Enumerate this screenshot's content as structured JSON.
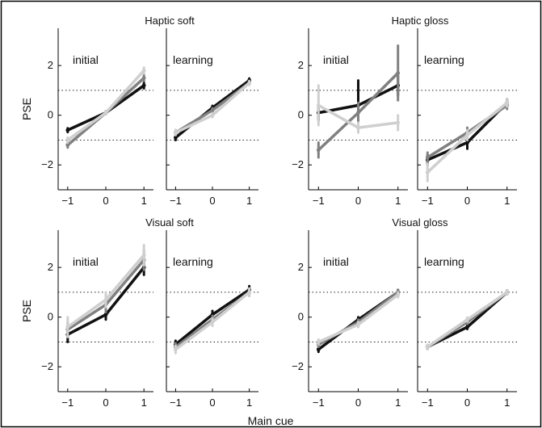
{
  "figure": {
    "border_color": "#000000",
    "series_colors": [
      "#111111",
      "#808080",
      "#cfcfcf"
    ],
    "xlabel": "Main cue"
  },
  "chart_data": [
    {
      "type": "line",
      "group_title": "Haptic soft",
      "ylabel": "PSE",
      "xlim": [
        -1.25,
        1.25
      ],
      "ylim": [
        -3,
        3.5
      ],
      "xticks": [
        "−1",
        "0",
        "1"
      ],
      "yticks": [
        "−2",
        "0",
        "2"
      ],
      "reference_lines": [
        -1,
        1
      ],
      "grid": false,
      "panels": [
        {
          "label": "initial",
          "x": [
            -1,
            0,
            1
          ],
          "series": [
            {
              "values": [
                -0.6,
                0.1,
                1.2
              ],
              "errors": [
                0.08,
                0.06,
                0.12
              ]
            },
            {
              "values": [
                -1.2,
                0.1,
                1.5
              ],
              "errors": [
                0.1,
                0.06,
                0.12
              ]
            },
            {
              "values": [
                -1.0,
                0.1,
                1.8
              ],
              "errors": [
                0.1,
                0.06,
                0.12
              ]
            }
          ]
        },
        {
          "label": "learning",
          "x": [
            -1,
            0,
            1
          ],
          "series": [
            {
              "values": [
                -0.9,
                0.3,
                1.4
              ],
              "errors": [
                0.1,
                0.08,
                0.08
              ]
            },
            {
              "values": [
                -0.7,
                0.2,
                1.3
              ],
              "errors": [
                0.1,
                0.08,
                0.08
              ]
            },
            {
              "values": [
                -0.7,
                0.0,
                1.3
              ],
              "errors": [
                0.1,
                0.08,
                0.08
              ]
            }
          ]
        }
      ]
    },
    {
      "type": "line",
      "group_title": "Haptic gloss",
      "ylabel": "",
      "xlim": [
        -1.25,
        1.25
      ],
      "ylim": [
        -3,
        3.5
      ],
      "xticks": [
        "−1",
        "0",
        "1"
      ],
      "yticks": [
        "−2",
        "0",
        "2"
      ],
      "reference_lines": [
        -1,
        1
      ],
      "grid": false,
      "panels": [
        {
          "label": "initial",
          "x": [
            -1,
            0,
            1
          ],
          "series": [
            {
              "values": [
                0.1,
                0.4,
                1.2
              ],
              "errors": [
                0.3,
                1.0,
                0.4
              ]
            },
            {
              "values": [
                -1.4,
                0.1,
                1.7
              ],
              "errors": [
                0.3,
                0.4,
                1.1
              ]
            },
            {
              "values": [
                0.4,
                -0.5,
                -0.3
              ],
              "errors": [
                0.8,
                0.2,
                0.3
              ]
            }
          ]
        },
        {
          "label": "learning",
          "x": [
            -1,
            0,
            1
          ],
          "series": [
            {
              "values": [
                -1.8,
                -1.1,
                0.5
              ],
              "errors": [
                0.2,
                0.25,
                0.15
              ]
            },
            {
              "values": [
                -1.7,
                -0.7,
                0.4
              ],
              "errors": [
                0.2,
                0.2,
                0.15
              ]
            },
            {
              "values": [
                -2.3,
                -0.8,
                0.5
              ],
              "errors": [
                0.35,
                0.2,
                0.15
              ]
            }
          ]
        }
      ]
    },
    {
      "type": "line",
      "group_title": "Visual soft",
      "ylabel": "PSE",
      "xlim": [
        -1.25,
        1.25
      ],
      "ylim": [
        -3,
        3.5
      ],
      "xticks": [
        "−1",
        "0",
        "1"
      ],
      "yticks": [
        "−2",
        "0",
        "2"
      ],
      "reference_lines": [
        -1,
        1
      ],
      "grid": false,
      "panels": [
        {
          "label": "initial",
          "x": [
            -1,
            0,
            1
          ],
          "series": [
            {
              "values": [
                -0.7,
                0.1,
                2.0
              ],
              "errors": [
                0.3,
                0.2,
                0.3
              ]
            },
            {
              "values": [
                -0.5,
                0.5,
                2.3
              ],
              "errors": [
                0.3,
                0.3,
                0.4
              ]
            },
            {
              "values": [
                -0.4,
                0.7,
                2.5
              ],
              "errors": [
                0.4,
                0.3,
                0.4
              ]
            }
          ]
        },
        {
          "label": "learning",
          "x": [
            -1,
            0,
            1
          ],
          "series": [
            {
              "values": [
                -1.1,
                0.1,
                1.1
              ],
              "errors": [
                0.15,
                0.15,
                0.15
              ]
            },
            {
              "values": [
                -1.2,
                -0.1,
                1.0
              ],
              "errors": [
                0.15,
                0.15,
                0.15
              ]
            },
            {
              "values": [
                -1.3,
                -0.2,
                1.0
              ],
              "errors": [
                0.15,
                0.15,
                0.15
              ]
            }
          ]
        }
      ]
    },
    {
      "type": "line",
      "group_title": "Visual gloss",
      "ylabel": "",
      "xlim": [
        -1.25,
        1.25
      ],
      "ylim": [
        -3,
        3.5
      ],
      "xticks": [
        "−1",
        "0",
        "1"
      ],
      "yticks": [
        "−2",
        "0",
        "2"
      ],
      "reference_lines": [
        -1,
        1
      ],
      "grid": false,
      "panels": [
        {
          "label": "initial",
          "x": [
            -1,
            0,
            1
          ],
          "series": [
            {
              "values": [
                -1.3,
                -0.1,
                1.0
              ],
              "errors": [
                0.1,
                0.1,
                0.1
              ]
            },
            {
              "values": [
                -1.1,
                -0.2,
                1.0
              ],
              "errors": [
                0.1,
                0.1,
                0.1
              ]
            },
            {
              "values": [
                -1.0,
                -0.3,
                0.9
              ],
              "errors": [
                0.1,
                0.1,
                0.1
              ]
            }
          ]
        },
        {
          "label": "learning",
          "x": [
            -1,
            0,
            1
          ],
          "series": [
            {
              "values": [
                -1.2,
                -0.4,
                1.0
              ],
              "errors": [
                0.08,
                0.08,
                0.08
              ]
            },
            {
              "values": [
                -1.2,
                -0.2,
                1.0
              ],
              "errors": [
                0.08,
                0.08,
                0.08
              ]
            },
            {
              "values": [
                -1.2,
                -0.1,
                1.0
              ],
              "errors": [
                0.08,
                0.08,
                0.08
              ]
            }
          ]
        }
      ]
    }
  ]
}
